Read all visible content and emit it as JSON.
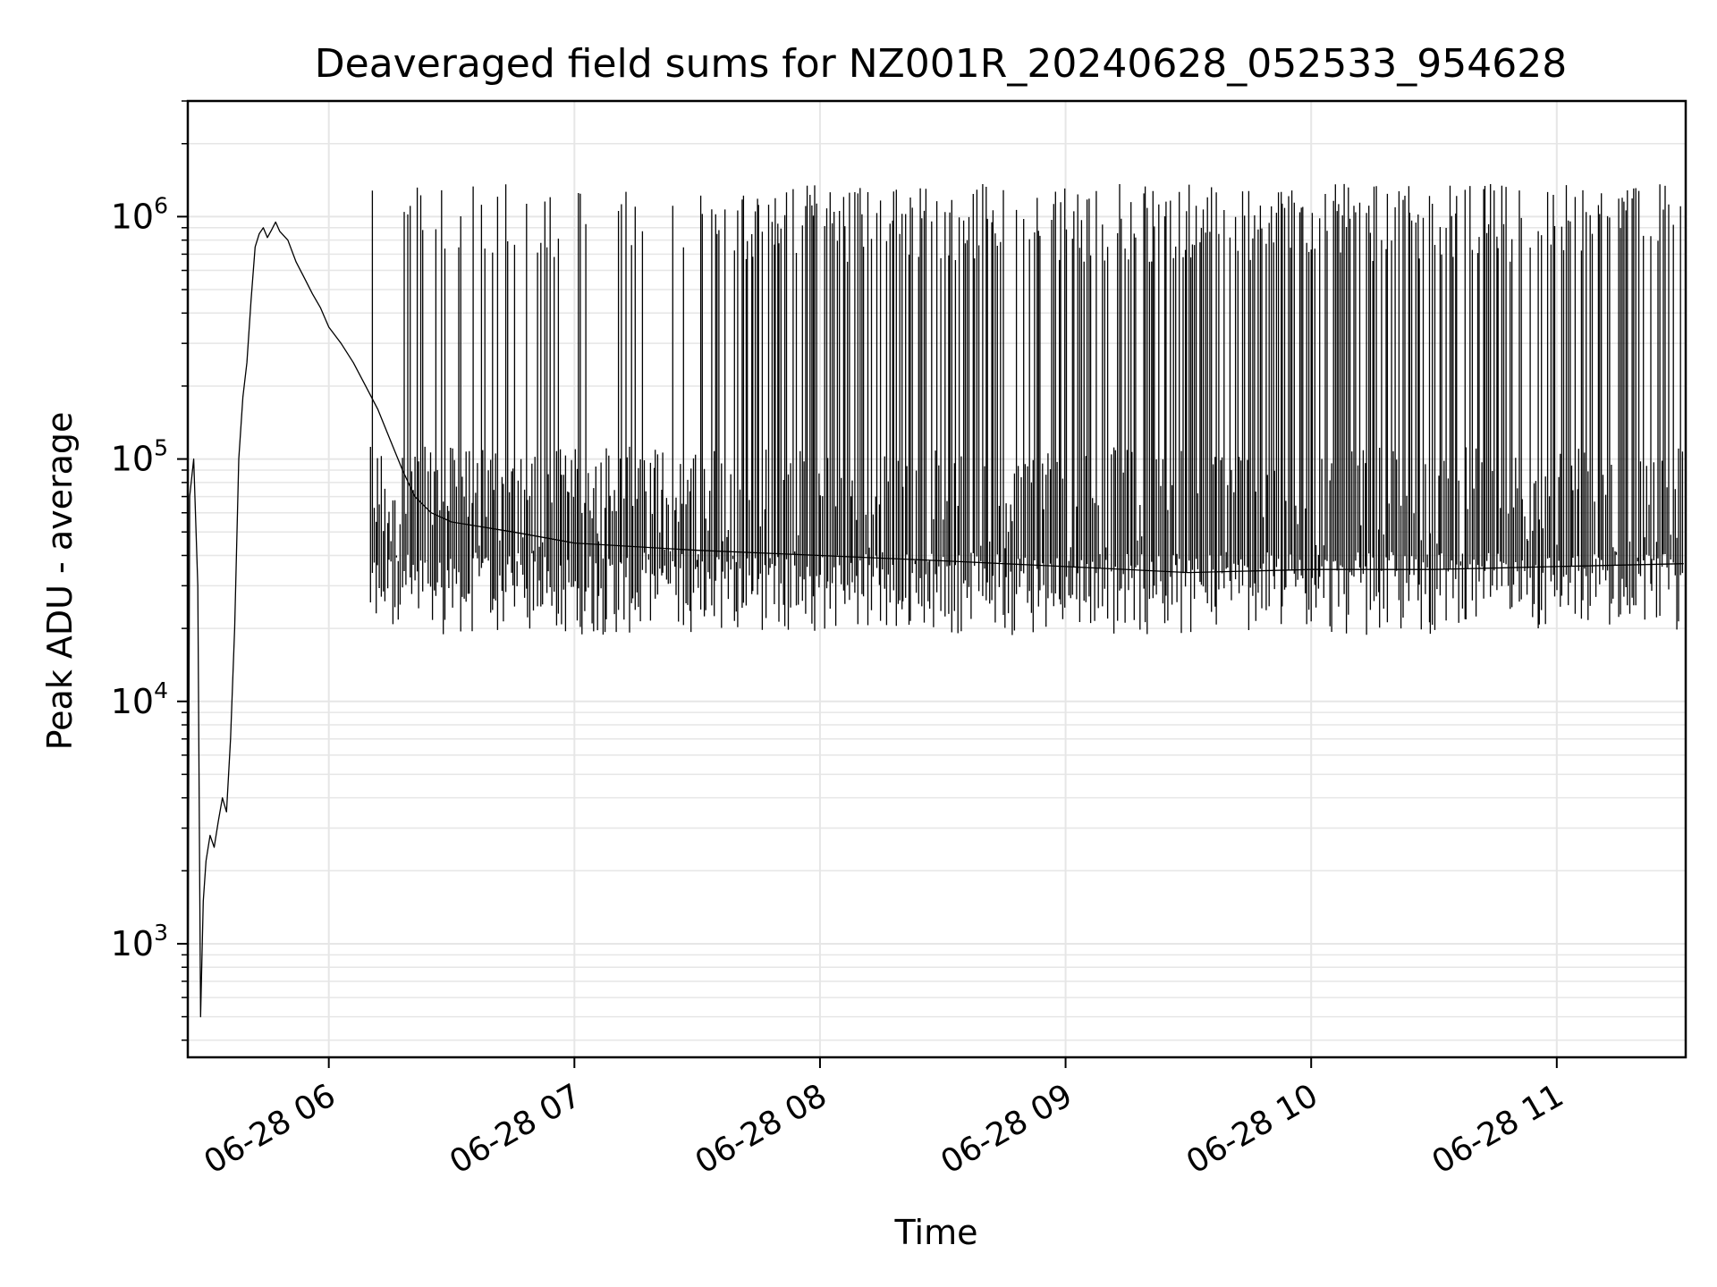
{
  "chart_data": {
    "type": "line",
    "title": "Deaveraged field sums for NZ001R_20240628_052533_954628",
    "xlabel": "Time",
    "ylabel": "Peak ADU - average",
    "xscale": "time",
    "yscale": "log",
    "xlim": [
      "2024-06-28T05:25:33",
      "2024-06-28T11:31:30"
    ],
    "ylim": [
      340,
      3000000
    ],
    "grid": true,
    "legend": "none",
    "line_color": "#000000",
    "grid_color": "#e6e6e6",
    "x_ticks": [
      {
        "value": "2024-06-28T06:00:00",
        "label": "06-28 06"
      },
      {
        "value": "2024-06-28T07:00:00",
        "label": "06-28 07"
      },
      {
        "value": "2024-06-28T08:00:00",
        "label": "06-28 08"
      },
      {
        "value": "2024-06-28T09:00:00",
        "label": "06-28 09"
      },
      {
        "value": "2024-06-28T10:00:00",
        "label": "06-28 10"
      },
      {
        "value": "2024-06-28T11:00:00",
        "label": "06-28 11"
      }
    ],
    "y_ticks": [
      {
        "value": 1000,
        "base": "10",
        "exp": "3"
      },
      {
        "value": 10000,
        "base": "10",
        "exp": "4"
      },
      {
        "value": 100000,
        "base": "10",
        "exp": "5"
      },
      {
        "value": 1000000,
        "base": "10",
        "exp": "6"
      }
    ],
    "series": [
      {
        "x": [
          "2024-06-28T05:25:33",
          "2024-06-28T05:26:00",
          "2024-06-28T05:27:00",
          "2024-06-28T05:28:00",
          "2024-06-28T05:28:40",
          "2024-06-28T05:29:20",
          "2024-06-28T05:30:00",
          "2024-06-28T05:31:00",
          "2024-06-28T05:32:00",
          "2024-06-28T05:33:00",
          "2024-06-28T05:34:00",
          "2024-06-28T05:35:00",
          "2024-06-28T05:36:00",
          "2024-06-28T05:37:00",
          "2024-06-28T05:38:00",
          "2024-06-28T05:39:00",
          "2024-06-28T05:40:00",
          "2024-06-28T05:41:00",
          "2024-06-28T05:42:00",
          "2024-06-28T05:43:00",
          "2024-06-28T05:44:00",
          "2024-06-28T05:45:00",
          "2024-06-28T05:46:00",
          "2024-06-28T05:47:00",
          "2024-06-28T05:48:00",
          "2024-06-28T05:50:00",
          "2024-06-28T05:52:00",
          "2024-06-28T05:54:00",
          "2024-06-28T05:56:00",
          "2024-06-28T05:58:00",
          "2024-06-28T06:00:00",
          "2024-06-28T06:03:00",
          "2024-06-28T06:06:00",
          "2024-06-28T06:09:00",
          "2024-06-28T06:12:00",
          "2024-06-28T06:15:00",
          "2024-06-28T06:18:00",
          "2024-06-28T06:21:00",
          "2024-06-28T06:25:00",
          "2024-06-28T06:30:00",
          "2024-06-28T06:45:00",
          "2024-06-28T07:00:00",
          "2024-06-28T07:30:00",
          "2024-06-28T08:00:00",
          "2024-06-28T08:30:00",
          "2024-06-28T09:00:00",
          "2024-06-28T09:30:00",
          "2024-06-28T10:00:00",
          "2024-06-28T10:30:00",
          "2024-06-28T11:00:00",
          "2024-06-28T11:31:00"
        ],
        "y": [
          340,
          70000,
          100000,
          30000,
          500,
          1500,
          2200,
          2800,
          2500,
          3200,
          4000,
          3500,
          7000,
          20000,
          100000,
          180000,
          250000,
          450000,
          750000,
          850000,
          900000,
          820000,
          880000,
          950000,
          870000,
          800000,
          650000,
          560000,
          480000,
          420000,
          350000,
          300000,
          250000,
          200000,
          160000,
          120000,
          90000,
          70000,
          60000,
          55000,
          50000,
          45000,
          42000,
          40000,
          38000,
          36000,
          34000,
          35000,
          35000,
          36000,
          37000
        ]
      }
    ],
    "spikes": {
      "from": "2024-06-28T06:10:00",
      "to": "2024-06-28T11:31:00",
      "peak_typical": 1300000,
      "floor_typical": 25000
    }
  }
}
